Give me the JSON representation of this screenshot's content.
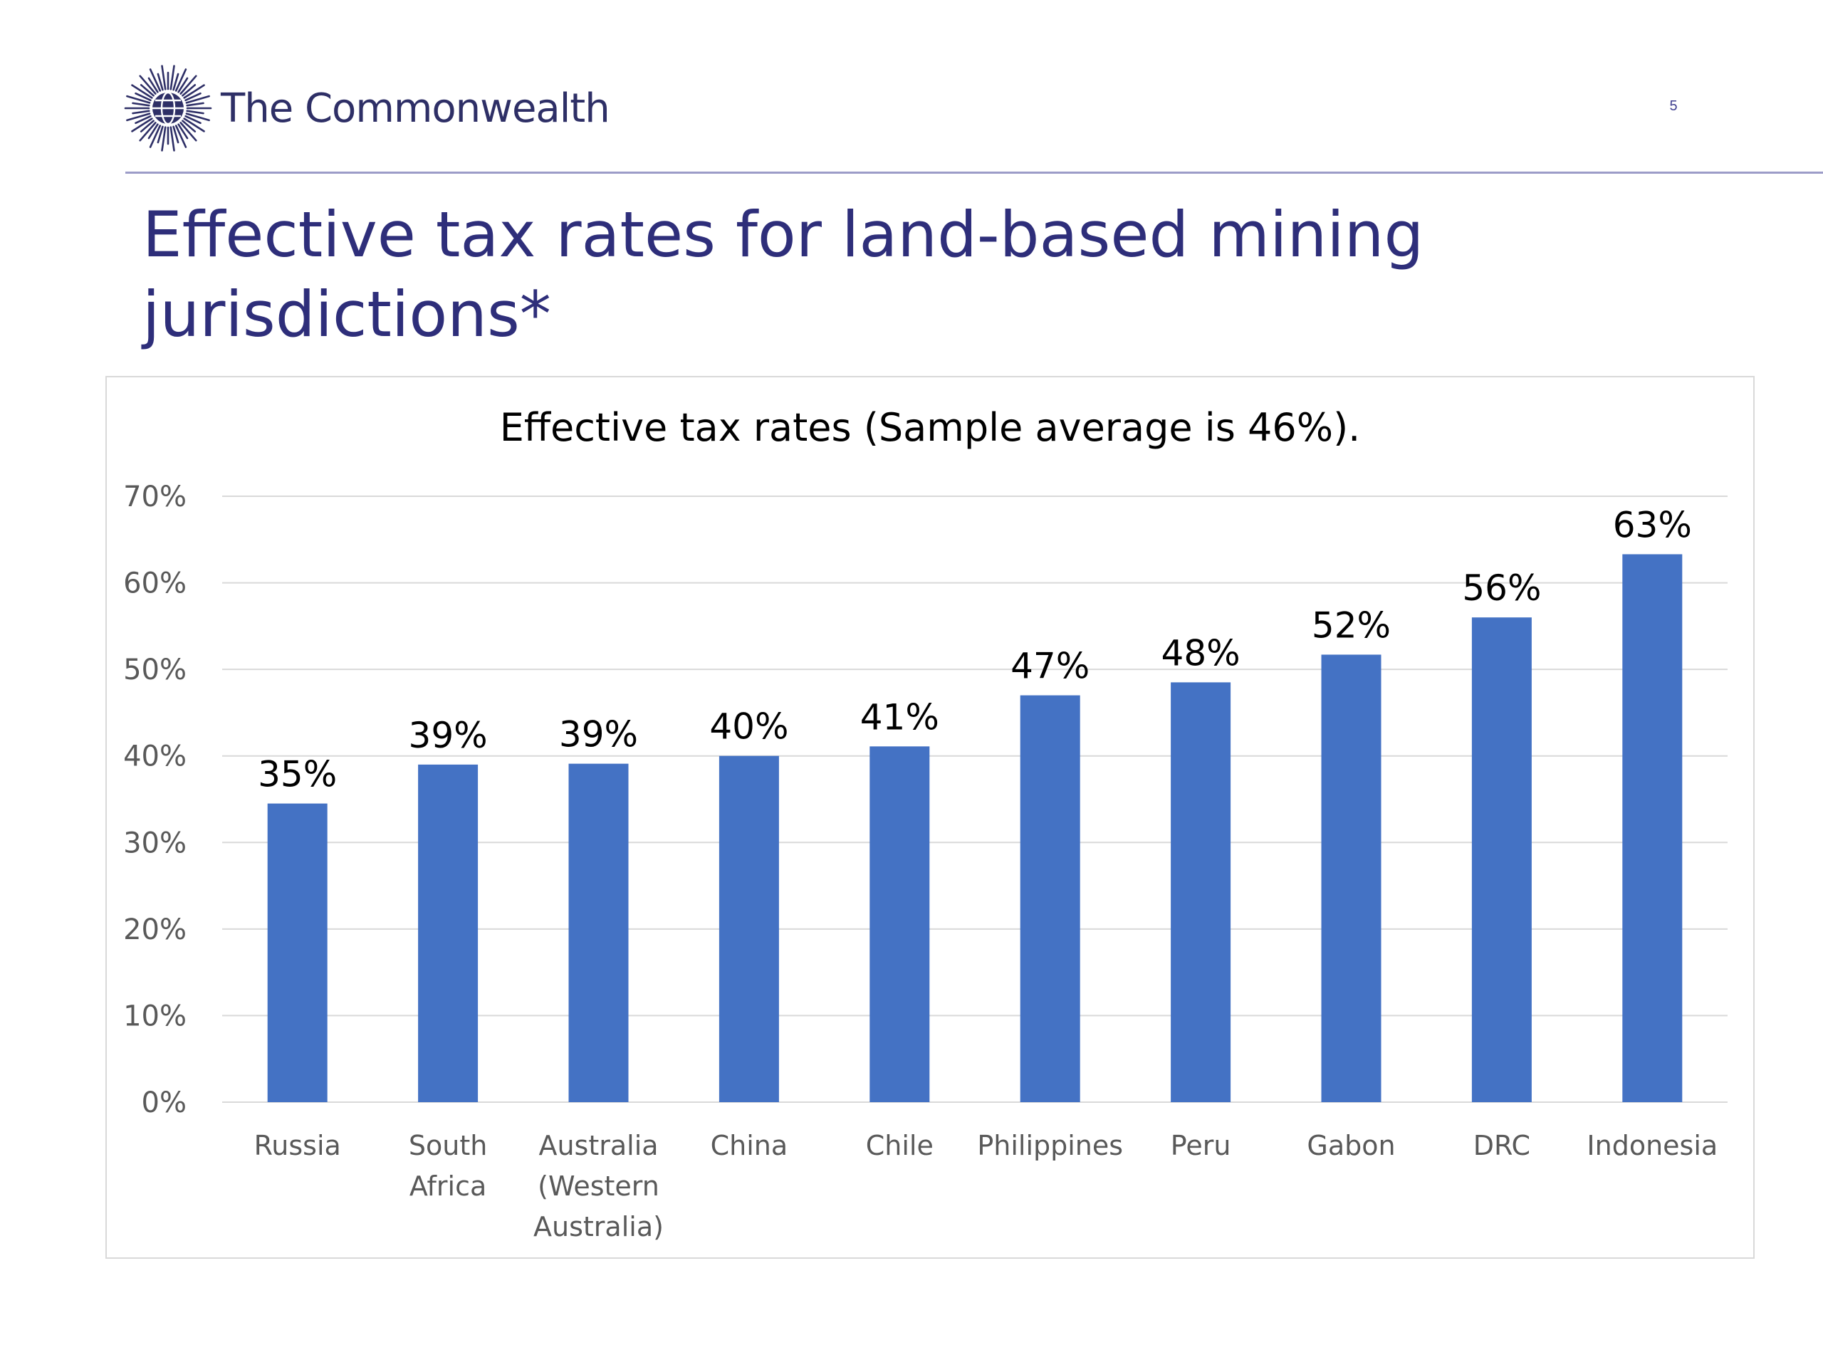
{
  "header": {
    "logo_text": "The Commonwealth",
    "page_number": "5"
  },
  "slide": {
    "title_line1": "Effective tax rates for land-based mining",
    "title_line2": "jurisdictions*"
  },
  "colors": {
    "bar": "#4472c4",
    "title": "#2e2e7a",
    "rule": "#9c9cc8",
    "logo": "#2e2f66",
    "gridline": "#d9d9d9"
  },
  "chart_data": {
    "type": "bar",
    "title": "Effective tax rates (Sample average is 46%).",
    "xlabel": "",
    "ylabel": "",
    "categories": [
      [
        "Russia"
      ],
      [
        "South",
        "Africa"
      ],
      [
        "Australia",
        "(Western",
        "Australia)"
      ],
      [
        "China"
      ],
      [
        "Chile"
      ],
      [
        "Philippines"
      ],
      [
        "Peru"
      ],
      [
        "Gabon"
      ],
      [
        "DRC"
      ],
      [
        "Indonesia"
      ]
    ],
    "values": [
      34.5,
      39,
      39.1,
      40,
      41.1,
      47,
      48.5,
      51.7,
      56,
      63.3
    ],
    "data_labels": [
      "35%",
      "39%",
      "39%",
      "40%",
      "41%",
      "47%",
      "48%",
      "52%",
      "56%",
      "63%"
    ],
    "ylim": [
      0,
      70
    ],
    "yticks": [
      0,
      10,
      20,
      30,
      40,
      50,
      60,
      70
    ],
    "ytick_labels": [
      "0%",
      "10%",
      "20%",
      "30%",
      "40%",
      "50%",
      "60%",
      "70%"
    ],
    "grid": true,
    "legend": "none"
  }
}
